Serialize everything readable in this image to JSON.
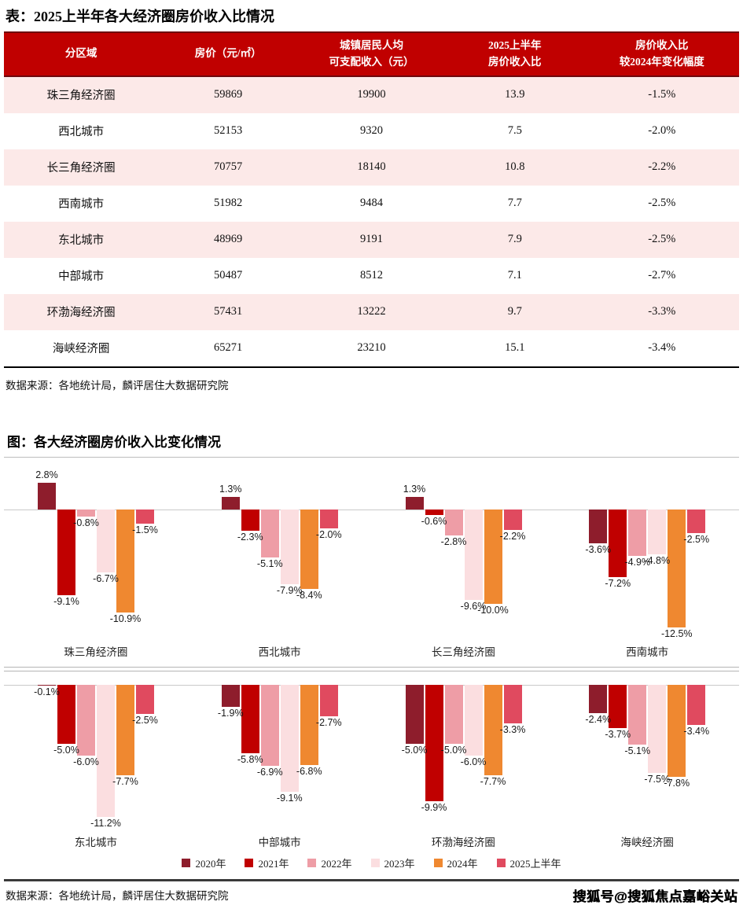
{
  "watermark": "搜狐号@搜狐焦点嘉峪关站",
  "chart_data": [
    {
      "type": "table",
      "title": "表：2025上半年各大经济圈房价收入比情况",
      "columns": [
        [
          "分区域"
        ],
        [
          "房价（元/㎡）"
        ],
        [
          "城镇居民人均",
          "可支配收入（元）"
        ],
        [
          "2025上半年",
          "房价收入比"
        ],
        [
          "房价收入比",
          "较2024年变化幅度"
        ]
      ],
      "col_widths": [
        "21%",
        "19%",
        "20%",
        "19%",
        "21%"
      ],
      "rows": [
        [
          "珠三角经济圈",
          "59869",
          "19900",
          "13.9",
          "-1.5%"
        ],
        [
          "西北城市",
          "52153",
          "9320",
          "7.5",
          "-2.0%"
        ],
        [
          "长三角经济圈",
          "70757",
          "18140",
          "10.8",
          "-2.2%"
        ],
        [
          "西南城市",
          "51982",
          "9484",
          "7.7",
          "-2.5%"
        ],
        [
          "东北城市",
          "48969",
          "9191",
          "7.9",
          "-2.5%"
        ],
        [
          "中部城市",
          "50487",
          "8512",
          "7.1",
          "-2.7%"
        ],
        [
          "环渤海经济圈",
          "57431",
          "13222",
          "9.7",
          "-3.3%"
        ],
        [
          "海峡经济圈",
          "65271",
          "23210",
          "15.1",
          "-3.4%"
        ]
      ],
      "source": "数据来源：各地统计局，麟评居住大数据研究院",
      "header_bg": "#C00000",
      "alt_row_bg": "#FCE9E8"
    },
    {
      "type": "bar",
      "title": "图：各大经济圈房价收入比变化情况",
      "categories": [
        "珠三角经济圈",
        "西北城市",
        "长三角经济圈",
        "西南城市",
        "东北城市",
        "中部城市",
        "环渤海经济圈",
        "海峡经济圈"
      ],
      "panel_rows": [
        [
          "珠三角经济圈",
          "西北城市",
          "长三角经济圈",
          "西南城市"
        ],
        [
          "东北城市",
          "中部城市",
          "环渤海经济圈",
          "海峡经济圈"
        ]
      ],
      "series": [
        {
          "name": "2020年",
          "color": "#8E1D2C",
          "values": [
            2.8,
            1.3,
            1.3,
            -3.6,
            -0.1,
            -1.9,
            -5.0,
            -2.4
          ]
        },
        {
          "name": "2021年",
          "color": "#C00000",
          "values": [
            -9.1,
            -2.3,
            -0.6,
            -7.2,
            -5.0,
            -5.8,
            -9.9,
            -3.7
          ]
        },
        {
          "name": "2022年",
          "color": "#EE9DA6",
          "values": [
            -0.8,
            -5.1,
            -2.8,
            -4.9,
            -6.0,
            -6.9,
            -5.0,
            -5.1
          ]
        },
        {
          "name": "2023年",
          "color": "#FBDEE0",
          "values": [
            -6.7,
            -7.9,
            -9.6,
            -4.8,
            -11.2,
            -9.1,
            -6.0,
            -7.5
          ]
        },
        {
          "name": "2024年",
          "color": "#EF8830",
          "values": [
            -10.9,
            -8.4,
            -10.0,
            -12.5,
            -7.7,
            -6.8,
            -7.7,
            -7.8
          ]
        },
        {
          "name": "2025上半年",
          "color": "#E04A5F",
          "values": [
            -1.5,
            -2.0,
            -2.2,
            -2.5,
            -2.5,
            -2.7,
            -3.3,
            -3.4
          ]
        }
      ],
      "unit": "%",
      "ylim": [
        -13,
        3
      ],
      "grid": false,
      "legend_position": "bottom",
      "value_labels": true,
      "source": "数据来源：各地统计局，麟评居住大数据研究院"
    }
  ]
}
